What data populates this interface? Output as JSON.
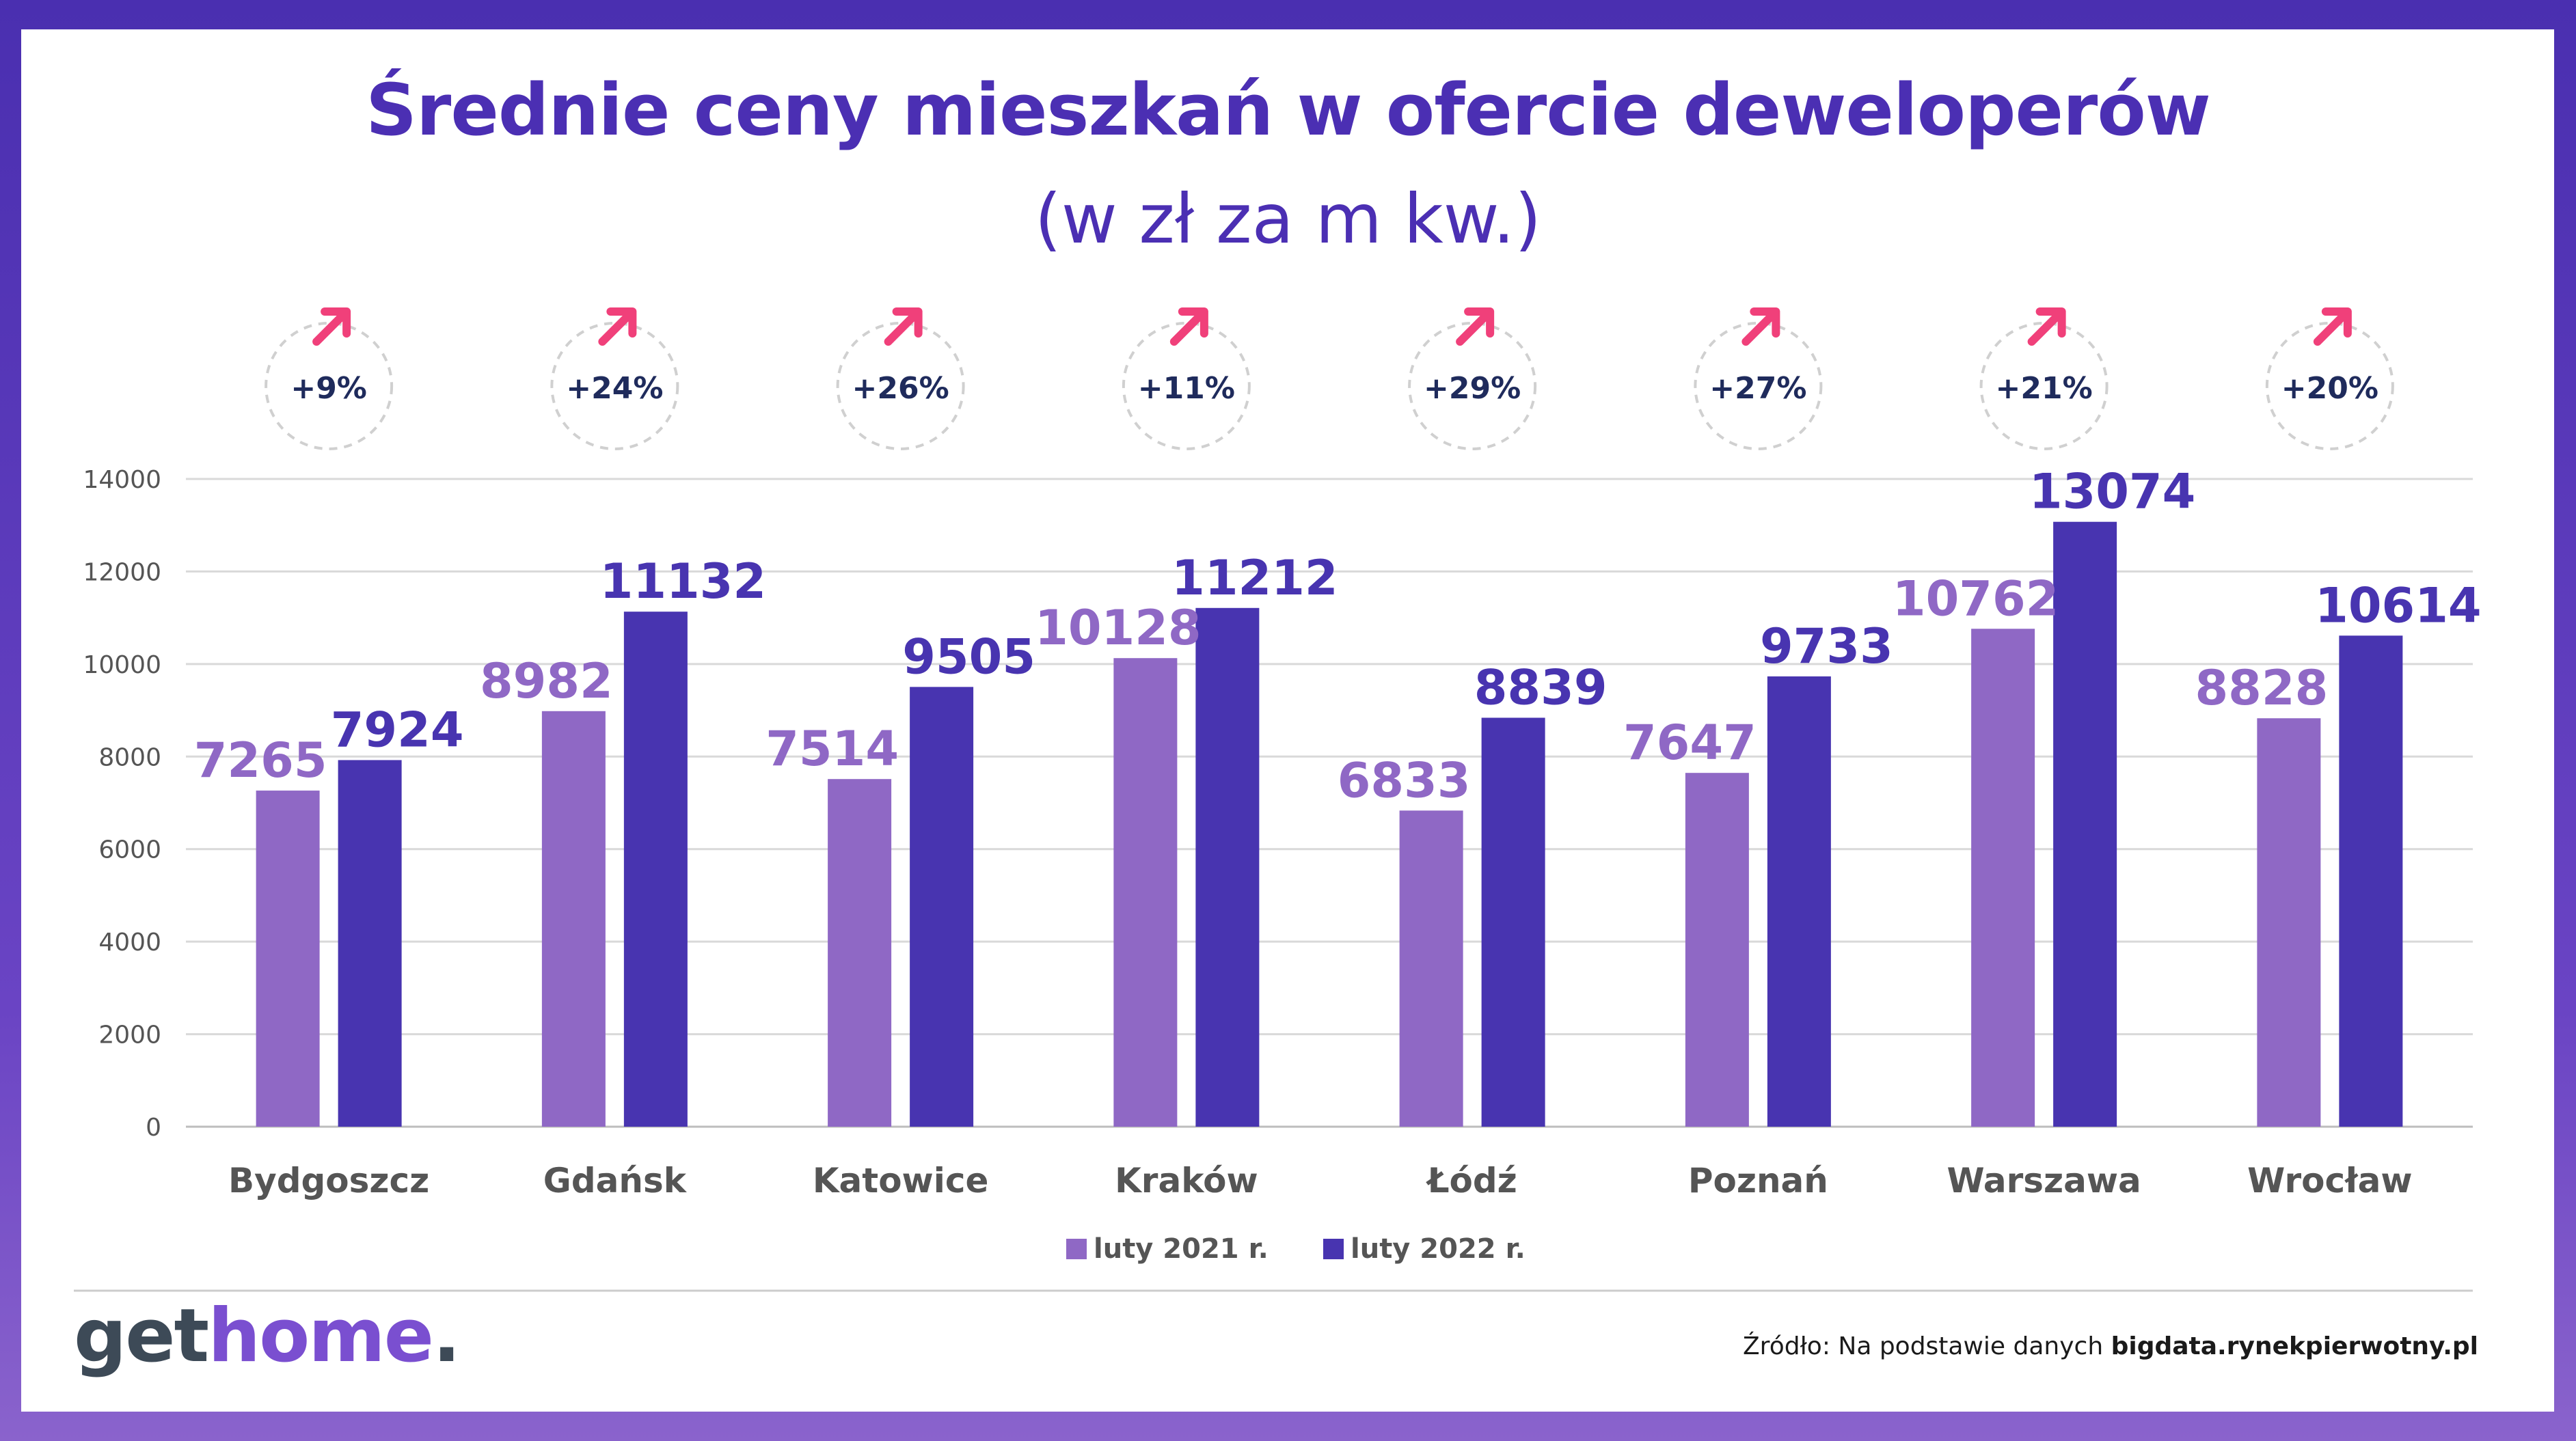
{
  "title": "Średnie ceny mieszkań w ofercie deweloperów",
  "subtitle": "(w zł za m kw.)",
  "chart_data": {
    "type": "bar",
    "categories": [
      "Bydgoszcz",
      "Gdańsk",
      "Katowice",
      "Kraków",
      "Łódź",
      "Poznań",
      "Warszawa",
      "Wrocław"
    ],
    "series": [
      {
        "name": "luty 2021 r.",
        "color": "#8f68c5",
        "values": [
          7265,
          8982,
          7514,
          10128,
          6833,
          7647,
          10762,
          8828
        ]
      },
      {
        "name": "luty 2022 r.",
        "color": "#4834b0",
        "values": [
          7924,
          11132,
          9505,
          11212,
          8839,
          9733,
          13074,
          10614
        ]
      }
    ],
    "changes": [
      "+9%",
      "+24%",
      "+26%",
      "+11%",
      "+29%",
      "+27%",
      "+21%",
      "+20%"
    ],
    "yticks": [
      "0",
      "2000",
      "4000",
      "6000",
      "8000",
      "10000",
      "12000",
      "14000"
    ],
    "ylim": [
      0,
      14000
    ],
    "grid": true,
    "legend": "bottom-center",
    "arrow_color": "#f0407a"
  },
  "logo": {
    "part1": "get",
    "part2": "home",
    "part3": "."
  },
  "source": {
    "prefix": "Źródło: Na podstawie danych ",
    "site": "bigdata.rynekpierwotny.pl"
  }
}
